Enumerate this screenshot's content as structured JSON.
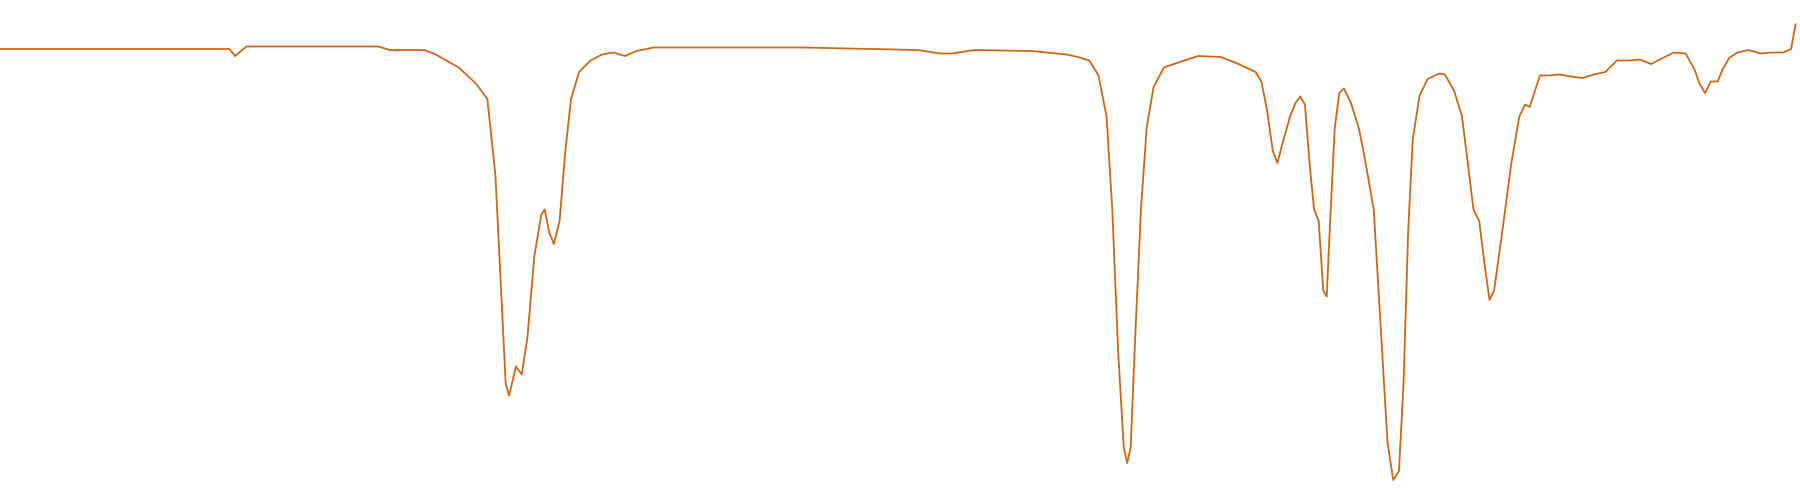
{
  "chart_data": {
    "type": "line",
    "x": [
      0,
      100,
      200,
      205,
      215,
      330,
      340,
      370,
      380,
      400,
      415,
      425,
      432,
      437,
      441,
      444,
      450,
      455,
      460,
      466,
      472,
      475,
      479,
      483,
      488,
      493,
      498,
      505,
      515,
      525,
      535,
      545,
      555,
      570,
      700,
      800,
      820,
      830,
      850,
      900,
      930,
      940,
      950,
      958,
      965,
      970,
      975,
      980,
      983,
      986,
      990,
      995,
      1000,
      1006,
      1015,
      1030,
      1045,
      1065,
      1080,
      1095,
      1100,
      1105,
      1110,
      1114,
      1118,
      1125,
      1130,
      1134,
      1138,
      1142,
      1146,
      1150,
      1154,
      1157,
      1160,
      1164,
      1168,
      1172,
      1178,
      1185,
      1190,
      1198,
      1204,
      1210,
      1215,
      1220,
      1224,
      1228,
      1232,
      1238,
      1245,
      1255,
      1260,
      1268,
      1275,
      1280,
      1285,
      1290,
      1295,
      1299,
      1303,
      1310,
      1318,
      1325,
      1330,
      1334,
      1338,
      1343,
      1350,
      1360,
      1370,
      1380,
      1390,
      1400,
      1410,
      1420,
      1430,
      1440,
      1450,
      1460,
      1470,
      1478,
      1482,
      1487,
      1492,
      1498,
      1502,
      1508,
      1515,
      1525,
      1535,
      1545,
      1555,
      1562,
      1566
    ],
    "series": [
      {
        "color": "#cc6618",
        "values": [
          90.2,
          90.2,
          90.2,
          88.8,
          90.7,
          90.7,
          90.0,
          90.0,
          89.1,
          86.5,
          83.3,
          80.2,
          65.1,
          41.9,
          23.3,
          20.9,
          26.7,
          25.1,
          32.6,
          48.8,
          57.0,
          58.1,
          53.5,
          51.2,
          55.8,
          69.8,
          80.2,
          85.6,
          87.9,
          89.1,
          89.5,
          88.8,
          89.8,
          90.5,
          90.5,
          90.0,
          89.3,
          89.3,
          90.0,
          89.8,
          89.1,
          88.6,
          87.9,
          84.9,
          76.7,
          58.1,
          30.2,
          10.5,
          7.4,
          10.5,
          32.6,
          58.1,
          74.4,
          82.6,
          86.5,
          87.7,
          88.8,
          88.6,
          87.2,
          85.6,
          83.7,
          77.9,
          69.8,
          67.4,
          70.9,
          76.7,
          79.5,
          80.7,
          79.1,
          67.4,
          58.1,
          55.8,
          41.9,
          40.7,
          55.8,
          74.4,
          81.4,
          82.3,
          79.5,
          74.4,
          68.6,
          58.1,
          34.9,
          11.6,
          4.0,
          5.8,
          23.3,
          53.5,
          72.1,
          80.9,
          84.2,
          85.3,
          85.1,
          81.9,
          76.7,
          67.4,
          58.1,
          55.8,
          46.5,
          40.0,
          41.9,
          53.5,
          67.4,
          76.7,
          79.1,
          78.6,
          81.4,
          84.9,
          84.9,
          85.1,
          84.7,
          84.4,
          85.1,
          85.6,
          87.9,
          87.9,
          88.1,
          87.2,
          88.4,
          89.5,
          89.3,
          86.0,
          83.3,
          81.4,
          83.7,
          83.7,
          86.0,
          88.4,
          89.5,
          90.0,
          89.3,
          89.5,
          89.5,
          90.2,
          95.3
        ]
      }
    ],
    "xlim": [
      0,
      1568
    ],
    "ylim": [
      0,
      100
    ]
  }
}
